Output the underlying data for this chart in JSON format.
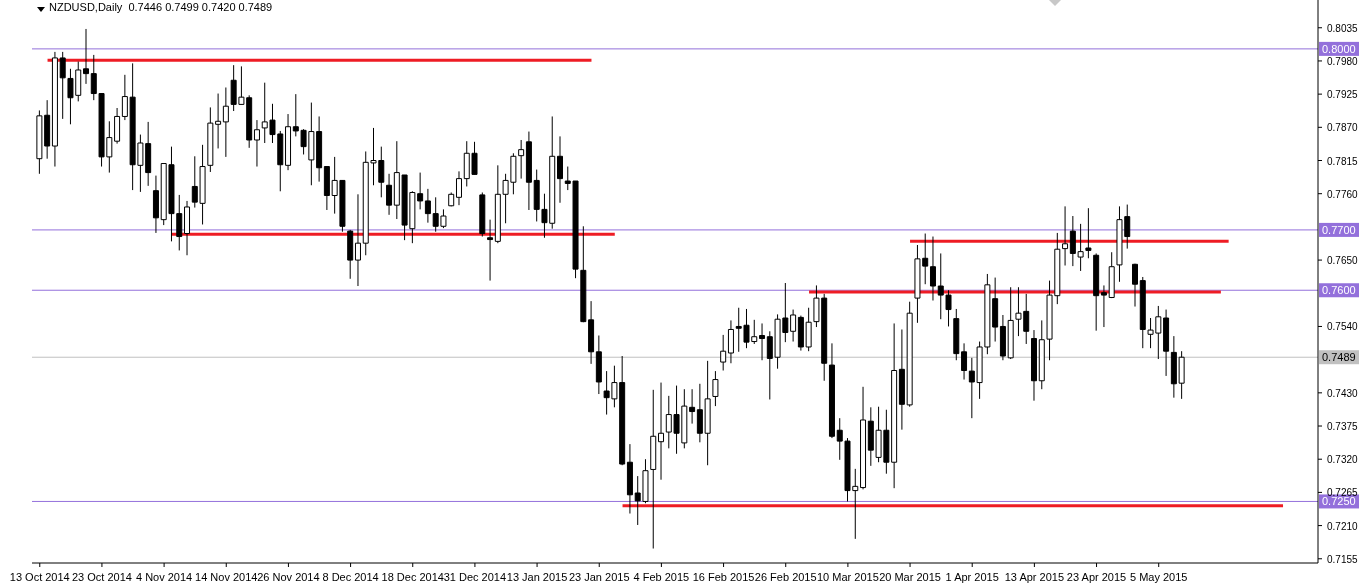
{
  "chart_data": {
    "type": "candlestick",
    "title": "NZDUSD,Daily  0.7446 0.7499 0.7420 0.7489",
    "categories": [
      "13 Oct 2014",
      null,
      null,
      null,
      null,
      null,
      null,
      null,
      "23 Oct 2014",
      null,
      null,
      null,
      null,
      null,
      null,
      null,
      "4 Nov 2014",
      null,
      null,
      null,
      null,
      null,
      null,
      null,
      "14 Nov 2014",
      null,
      null,
      null,
      null,
      null,
      null,
      null,
      "26 Nov 2014",
      null,
      null,
      null,
      null,
      null,
      null,
      null,
      "8 Dec 2014",
      null,
      null,
      null,
      null,
      null,
      null,
      null,
      "18 Dec 2014",
      null,
      null,
      null,
      null,
      null,
      null,
      null,
      "31 Dec 2014",
      null,
      null,
      null,
      null,
      null,
      null,
      null,
      "13 Jan 2015",
      null,
      null,
      null,
      null,
      null,
      null,
      null,
      "23 Jan 2015",
      null,
      null,
      null,
      null,
      null,
      null,
      null,
      "4 Feb 2015",
      null,
      null,
      null,
      null,
      null,
      null,
      null,
      "16 Feb 2015",
      null,
      null,
      null,
      null,
      null,
      null,
      null,
      "26 Feb 2015",
      null,
      null,
      null,
      null,
      null,
      null,
      null,
      "10 Mar 2015",
      null,
      null,
      null,
      null,
      null,
      null,
      null,
      "20 Mar 2015",
      null,
      null,
      null,
      null,
      null,
      null,
      null,
      "1 Apr 2015",
      null,
      null,
      null,
      null,
      null,
      null,
      null,
      "13 Apr 2015",
      null,
      null,
      null,
      null,
      null,
      null,
      null,
      "23 Apr 2015",
      null,
      null,
      null,
      null,
      null,
      null,
      null,
      "5 May 2015",
      null,
      null,
      null,
      null,
      null,
      null,
      null,
      null,
      null,
      null,
      null,
      null,
      null,
      null,
      null,
      null,
      null,
      null,
      null,
      null
    ],
    "ohlc": [
      [
        0.7818,
        0.7898,
        0.7793,
        0.7889
      ],
      [
        0.789,
        0.7915,
        0.7818,
        0.7839
      ],
      [
        0.7839,
        0.7995,
        0.7805,
        0.7985
      ],
      [
        0.7985,
        0.7995,
        0.7884,
        0.7952
      ],
      [
        0.7951,
        0.7967,
        0.7875,
        0.7919
      ],
      [
        0.7923,
        0.7979,
        0.7913,
        0.7965
      ],
      [
        0.7967,
        0.8033,
        0.7942,
        0.7959
      ],
      [
        0.7959,
        0.799,
        0.7915,
        0.7926
      ],
      [
        0.7926,
        0.7926,
        0.7805,
        0.7821
      ],
      [
        0.7821,
        0.788,
        0.7795,
        0.7853
      ],
      [
        0.7847,
        0.7902,
        0.7843,
        0.7888
      ],
      [
        0.7888,
        0.7957,
        0.7882,
        0.7921
      ],
      [
        0.792,
        0.7976,
        0.7766,
        0.7808
      ],
      [
        0.7807,
        0.7858,
        0.7763,
        0.7844
      ],
      [
        0.7843,
        0.7879,
        0.7773,
        0.7795
      ],
      [
        0.7765,
        0.779,
        0.7695,
        0.772
      ],
      [
        0.7717,
        0.781,
        0.7708,
        0.781
      ],
      [
        0.7808,
        0.7838,
        0.7681,
        0.7727
      ],
      [
        0.7727,
        0.7758,
        0.7666,
        0.7689
      ],
      [
        0.7694,
        0.7748,
        0.7658,
        0.7738
      ],
      [
        0.7772,
        0.7822,
        0.7737,
        0.7746
      ],
      [
        0.7744,
        0.7841,
        0.7709,
        0.7805
      ],
      [
        0.7807,
        0.7903,
        0.7796,
        0.7877
      ],
      [
        0.7875,
        0.7926,
        0.7835,
        0.788
      ],
      [
        0.7879,
        0.7936,
        0.7821,
        0.7905
      ],
      [
        0.7948,
        0.7973,
        0.7897,
        0.7908
      ],
      [
        0.7908,
        0.7971,
        0.7908,
        0.792
      ],
      [
        0.7919,
        0.7923,
        0.7836,
        0.7849
      ],
      [
        0.7849,
        0.7882,
        0.7805,
        0.7866
      ],
      [
        0.7869,
        0.7944,
        0.7844,
        0.7879
      ],
      [
        0.7882,
        0.7909,
        0.7844,
        0.7858
      ],
      [
        0.7859,
        0.7864,
        0.7764,
        0.7808
      ],
      [
        0.7807,
        0.7892,
        0.7799,
        0.7871
      ],
      [
        0.7871,
        0.7925,
        0.7855,
        0.7864
      ],
      [
        0.7865,
        0.7867,
        0.7825,
        0.7838
      ],
      [
        0.7816,
        0.7911,
        0.7774,
        0.7863
      ],
      [
        0.7863,
        0.7888,
        0.778,
        0.7803
      ],
      [
        0.7805,
        0.7805,
        0.7733,
        0.7757
      ],
      [
        0.7757,
        0.7821,
        0.7727,
        0.7782
      ],
      [
        0.7782,
        0.7782,
        0.7697,
        0.7706
      ],
      [
        0.7698,
        0.77,
        0.7619,
        0.765
      ],
      [
        0.765,
        0.7759,
        0.7607,
        0.7678
      ],
      [
        0.7678,
        0.783,
        0.7658,
        0.7812
      ],
      [
        0.7811,
        0.7869,
        0.7774,
        0.7815
      ],
      [
        0.7815,
        0.7838,
        0.7754,
        0.7779
      ],
      [
        0.7774,
        0.7793,
        0.7725,
        0.7741
      ],
      [
        0.7741,
        0.7847,
        0.7718,
        0.7795
      ],
      [
        0.7791,
        0.7791,
        0.7683,
        0.7708
      ],
      [
        0.7702,
        0.7764,
        0.7678,
        0.7762
      ],
      [
        0.776,
        0.7795,
        0.7734,
        0.7748
      ],
      [
        0.7748,
        0.7768,
        0.7712,
        0.7727
      ],
      [
        0.7727,
        0.7754,
        0.7697,
        0.7706
      ],
      [
        0.7706,
        0.7734,
        0.7703,
        0.7723
      ],
      [
        0.774,
        0.7762,
        0.7739,
        0.7759
      ],
      [
        0.7754,
        0.7797,
        0.7741,
        0.7785
      ],
      [
        0.7785,
        0.7847,
        0.7772,
        0.7827
      ],
      [
        0.7827,
        0.7846,
        0.7792,
        0.7792
      ],
      [
        0.7758,
        0.7762,
        0.7689,
        0.7694
      ],
      [
        0.7687,
        0.7717,
        0.7616,
        0.7684
      ],
      [
        0.7681,
        0.7807,
        0.7678,
        0.7759
      ],
      [
        0.7759,
        0.7793,
        0.7711,
        0.7782
      ],
      [
        0.7779,
        0.7827,
        0.7759,
        0.7822
      ],
      [
        0.7823,
        0.7849,
        0.7785,
        0.7833
      ],
      [
        0.7846,
        0.7863,
        0.7733,
        0.7779
      ],
      [
        0.7782,
        0.78,
        0.7714,
        0.7734
      ],
      [
        0.7734,
        0.776,
        0.7687,
        0.7712
      ],
      [
        0.7711,
        0.7888,
        0.7702,
        0.7822
      ],
      [
        0.7822,
        0.7855,
        0.7745,
        0.7785
      ],
      [
        0.7781,
        0.7805,
        0.7766,
        0.7777
      ],
      [
        0.7781,
        0.7781,
        0.762,
        0.7635
      ],
      [
        0.7633,
        0.7706,
        0.7547,
        0.7548
      ],
      [
        0.7551,
        0.7582,
        0.7478,
        0.7498
      ],
      [
        0.7498,
        0.7525,
        0.7428,
        0.7448
      ],
      [
        0.7433,
        0.7466,
        0.7394,
        0.7422
      ],
      [
        0.742,
        0.7475,
        0.7406,
        0.7447
      ],
      [
        0.7447,
        0.7491,
        0.731,
        0.7312
      ],
      [
        0.7315,
        0.7345,
        0.723,
        0.7261
      ],
      [
        0.7264,
        0.7292,
        0.7211,
        0.7251
      ],
      [
        0.725,
        0.732,
        0.7247,
        0.7301
      ],
      [
        0.7303,
        0.7435,
        0.7172,
        0.7358
      ],
      [
        0.7349,
        0.7447,
        0.7286,
        0.7363
      ],
      [
        0.7365,
        0.7425,
        0.7338,
        0.7394
      ],
      [
        0.7394,
        0.7442,
        0.7329,
        0.7363
      ],
      [
        0.7347,
        0.7436,
        0.7338,
        0.7408
      ],
      [
        0.7406,
        0.7436,
        0.7379,
        0.7399
      ],
      [
        0.7402,
        0.7445,
        0.7348,
        0.7363
      ],
      [
        0.7363,
        0.7483,
        0.731,
        0.742
      ],
      [
        0.7424,
        0.7466,
        0.7408,
        0.7452
      ],
      [
        0.7481,
        0.7526,
        0.7467,
        0.7499
      ],
      [
        0.7496,
        0.755,
        0.7479,
        0.7535
      ],
      [
        0.754,
        0.7571,
        0.7498,
        0.7537
      ],
      [
        0.7542,
        0.7569,
        0.7504,
        0.7514
      ],
      [
        0.7515,
        0.7551,
        0.7511,
        0.7523
      ],
      [
        0.7525,
        0.7545,
        0.7484,
        0.752
      ],
      [
        0.7523,
        0.7532,
        0.7419,
        0.7487
      ],
      [
        0.7489,
        0.756,
        0.747,
        0.7552
      ],
      [
        0.7554,
        0.7612,
        0.7514,
        0.753
      ],
      [
        0.7532,
        0.7568,
        0.7515,
        0.7559
      ],
      [
        0.7555,
        0.7558,
        0.75,
        0.7506
      ],
      [
        0.7506,
        0.7571,
        0.7499,
        0.7547
      ],
      [
        0.7548,
        0.7608,
        0.7539,
        0.7587
      ],
      [
        0.7587,
        0.7594,
        0.745,
        0.7479
      ],
      [
        0.7476,
        0.7512,
        0.7355,
        0.7358
      ],
      [
        0.7368,
        0.7388,
        0.7319,
        0.735
      ],
      [
        0.735,
        0.7355,
        0.725,
        0.7268
      ],
      [
        0.7268,
        0.7304,
        0.7188,
        0.7275
      ],
      [
        0.7273,
        0.744,
        0.727,
        0.7385
      ],
      [
        0.7383,
        0.7406,
        0.7309,
        0.7335
      ],
      [
        0.7323,
        0.7407,
        0.7315,
        0.7368
      ],
      [
        0.7368,
        0.7402,
        0.7296,
        0.7315
      ],
      [
        0.7315,
        0.7545,
        0.7272,
        0.7467
      ],
      [
        0.7469,
        0.7535,
        0.7369,
        0.7411
      ],
      [
        0.741,
        0.7581,
        0.7407,
        0.7562
      ],
      [
        0.7587,
        0.7675,
        0.7546,
        0.7652
      ],
      [
        0.7653,
        0.7694,
        0.761,
        0.764
      ],
      [
        0.7639,
        0.7689,
        0.7583,
        0.7607
      ],
      [
        0.7607,
        0.7661,
        0.7552,
        0.7592
      ],
      [
        0.7592,
        0.76,
        0.754,
        0.7568
      ],
      [
        0.7553,
        0.7569,
        0.7484,
        0.7495
      ],
      [
        0.7498,
        0.7512,
        0.7452,
        0.7467
      ],
      [
        0.7466,
        0.7488,
        0.7388,
        0.7448
      ],
      [
        0.7447,
        0.7515,
        0.742,
        0.7506
      ],
      [
        0.7506,
        0.7627,
        0.7494,
        0.7609
      ],
      [
        0.7586,
        0.7621,
        0.7515,
        0.7539
      ],
      [
        0.754,
        0.7559,
        0.7484,
        0.7491
      ],
      [
        0.7488,
        0.7605,
        0.7486,
        0.755
      ],
      [
        0.7552,
        0.7605,
        0.7524,
        0.7562
      ],
      [
        0.7565,
        0.7594,
        0.7511,
        0.7532
      ],
      [
        0.752,
        0.7534,
        0.7417,
        0.745
      ],
      [
        0.745,
        0.755,
        0.7436,
        0.7518
      ],
      [
        0.7519,
        0.7616,
        0.7484,
        0.7592
      ],
      [
        0.7591,
        0.7695,
        0.7577,
        0.7668
      ],
      [
        0.7669,
        0.7739,
        0.7641,
        0.7677
      ],
      [
        0.7698,
        0.7723,
        0.764,
        0.7661
      ],
      [
        0.7655,
        0.771,
        0.7632,
        0.7664
      ],
      [
        0.767,
        0.7736,
        0.7653,
        0.7666
      ],
      [
        0.7658,
        0.7661,
        0.7533,
        0.7591
      ],
      [
        0.7596,
        0.7608,
        0.7539,
        0.7592
      ],
      [
        0.7588,
        0.7663,
        0.7587,
        0.7639
      ],
      [
        0.7642,
        0.7739,
        0.7614,
        0.7717
      ],
      [
        0.7722,
        0.7742,
        0.7669,
        0.7689
      ],
      [
        0.7643,
        0.7644,
        0.7573,
        0.761
      ],
      [
        0.7616,
        0.7622,
        0.7504,
        0.7535
      ],
      [
        0.7527,
        0.7554,
        0.7504,
        0.7534
      ],
      [
        0.7529,
        0.7574,
        0.7486,
        0.7556
      ],
      [
        0.7554,
        0.7568,
        0.7458,
        0.7499
      ],
      [
        0.7497,
        0.7524,
        0.7422,
        0.7445
      ],
      [
        0.7446,
        0.7499,
        0.742,
        0.7489
      ],
      null,
      null,
      null,
      null,
      null,
      null,
      null,
      null,
      null,
      null,
      null,
      null,
      null,
      null,
      null,
      null,
      null
    ],
    "series": [
      {
        "type": "line",
        "color": "#ee1c24",
        "values": [
          null,
          0.7981,
          null,
          null,
          null,
          null,
          null,
          null,
          null,
          null,
          null,
          null,
          null,
          null,
          null,
          null,
          null,
          null,
          null,
          null,
          null,
          null,
          null,
          null,
          null,
          null,
          null,
          null,
          null,
          null,
          null,
          null,
          null,
          null,
          null,
          null,
          null,
          null,
          null,
          null,
          null,
          null,
          null,
          null,
          null,
          null,
          null,
          null,
          null,
          null,
          null,
          null,
          null,
          null,
          null,
          null,
          null,
          null,
          null,
          null,
          null,
          null,
          null,
          null,
          null,
          null,
          null,
          null,
          null,
          null,
          null,
          0.7981,
          null,
          null,
          null,
          null,
          null,
          null,
          null,
          null,
          null,
          null,
          null,
          null,
          null,
          null,
          null,
          null,
          null,
          null,
          null,
          null,
          null,
          null,
          null,
          null,
          null,
          null,
          null,
          null,
          null,
          null,
          null,
          null,
          null,
          null,
          null,
          null,
          null,
          null,
          null,
          null,
          null,
          null,
          null,
          null,
          null,
          null,
          null,
          null,
          null,
          null,
          null,
          null,
          null,
          null,
          null,
          null,
          null,
          null,
          null,
          null,
          null,
          null,
          null,
          null,
          null,
          null,
          null,
          null,
          null,
          null,
          null,
          null,
          null,
          null,
          null,
          null,
          null,
          null,
          null,
          null,
          null,
          null,
          null,
          null,
          null,
          null,
          null,
          null,
          null,
          null,
          null,
          null,
          null
        ]
      },
      {
        "type": "line",
        "color": "#ee1c24",
        "values": [
          null,
          null,
          null,
          null,
          null,
          null,
          null,
          null,
          null,
          null,
          null,
          null,
          null,
          null,
          null,
          null,
          null,
          0.7693,
          null,
          null,
          null,
          null,
          null,
          null,
          null,
          null,
          null,
          null,
          null,
          null,
          null,
          null,
          null,
          null,
          null,
          null,
          null,
          null,
          null,
          null,
          null,
          null,
          null,
          null,
          null,
          null,
          null,
          null,
          null,
          null,
          null,
          null,
          null,
          null,
          null,
          null,
          null,
          null,
          null,
          null,
          null,
          null,
          null,
          null,
          null,
          null,
          null,
          null,
          null,
          null,
          null,
          null,
          null,
          null,
          0.7693,
          null,
          null,
          null,
          null,
          null,
          null,
          null,
          null,
          null,
          null,
          null,
          null,
          null,
          null,
          null,
          null,
          null,
          null,
          null,
          null,
          null,
          null,
          null,
          null,
          null,
          null,
          null,
          null,
          null,
          null,
          null,
          null,
          null,
          null,
          null,
          null,
          null,
          null,
          null,
          null,
          null,
          null,
          null,
          null,
          null,
          null,
          null,
          null,
          null,
          null,
          null,
          null,
          null,
          null,
          null,
          null,
          null,
          null,
          null,
          null,
          null,
          null,
          null,
          null,
          null,
          null,
          null,
          null,
          null,
          null,
          null,
          null,
          null,
          null,
          null,
          null,
          null,
          null,
          null,
          null,
          null,
          null,
          null,
          null,
          null,
          null,
          null,
          null,
          null,
          null
        ]
      },
      {
        "type": "line",
        "color": "#ee1c24",
        "values": [
          null,
          null,
          null,
          null,
          null,
          null,
          null,
          null,
          null,
          null,
          null,
          null,
          null,
          null,
          null,
          null,
          null,
          null,
          null,
          null,
          null,
          null,
          null,
          null,
          null,
          null,
          null,
          null,
          null,
          null,
          null,
          null,
          null,
          null,
          null,
          null,
          null,
          null,
          null,
          null,
          null,
          null,
          null,
          null,
          null,
          null,
          null,
          null,
          null,
          null,
          null,
          null,
          null,
          null,
          null,
          null,
          null,
          null,
          null,
          null,
          null,
          null,
          null,
          null,
          null,
          null,
          null,
          null,
          null,
          null,
          null,
          null,
          null,
          null,
          null,
          0.7243,
          null,
          null,
          null,
          null,
          null,
          null,
          null,
          null,
          null,
          null,
          null,
          null,
          null,
          null,
          null,
          null,
          null,
          null,
          null,
          null,
          null,
          null,
          null,
          null,
          null,
          null,
          null,
          null,
          null,
          null,
          null,
          null,
          null,
          null,
          null,
          null,
          null,
          null,
          null,
          null,
          null,
          null,
          null,
          null,
          null,
          null,
          null,
          null,
          null,
          null,
          null,
          null,
          null,
          null,
          null,
          null,
          null,
          null,
          null,
          null,
          null,
          null,
          null,
          null,
          null,
          null,
          null,
          null,
          null,
          null,
          null,
          null,
          null,
          null,
          null,
          null,
          null,
          null,
          null,
          null,
          null,
          null,
          null,
          null,
          0.7243,
          null,
          null,
          null,
          null
        ]
      },
      {
        "type": "line",
        "color": "#ee1c24",
        "values": [
          null,
          null,
          null,
          null,
          null,
          null,
          null,
          null,
          null,
          null,
          null,
          null,
          null,
          null,
          null,
          null,
          null,
          null,
          null,
          null,
          null,
          null,
          null,
          null,
          null,
          null,
          null,
          null,
          null,
          null,
          null,
          null,
          null,
          null,
          null,
          null,
          null,
          null,
          null,
          null,
          null,
          null,
          null,
          null,
          null,
          null,
          null,
          null,
          null,
          null,
          null,
          null,
          null,
          null,
          null,
          null,
          null,
          null,
          null,
          null,
          null,
          null,
          null,
          null,
          null,
          null,
          null,
          null,
          null,
          null,
          null,
          null,
          null,
          null,
          null,
          null,
          null,
          null,
          null,
          null,
          null,
          null,
          null,
          null,
          null,
          null,
          null,
          null,
          null,
          null,
          null,
          null,
          null,
          null,
          null,
          null,
          null,
          null,
          null,
          0.7597,
          null,
          null,
          null,
          null,
          null,
          null,
          null,
          null,
          null,
          null,
          null,
          null,
          null,
          null,
          null,
          null,
          null,
          null,
          null,
          null,
          null,
          null,
          null,
          null,
          null,
          null,
          null,
          null,
          null,
          null,
          null,
          null,
          null,
          null,
          null,
          null,
          null,
          null,
          null,
          null,
          null,
          null,
          null,
          null,
          null,
          null,
          null,
          null,
          null,
          null,
          null,
          null,
          0.7597,
          null,
          null,
          null,
          null,
          null,
          null,
          null,
          null,
          null,
          null,
          null,
          null
        ]
      },
      {
        "type": "line",
        "color": "#ee1c24",
        "values": [
          null,
          null,
          null,
          null,
          null,
          null,
          null,
          null,
          null,
          null,
          null,
          null,
          null,
          null,
          null,
          null,
          null,
          null,
          null,
          null,
          null,
          null,
          null,
          null,
          null,
          null,
          null,
          null,
          null,
          null,
          null,
          null,
          null,
          null,
          null,
          null,
          null,
          null,
          null,
          null,
          null,
          null,
          null,
          null,
          null,
          null,
          null,
          null,
          null,
          null,
          null,
          null,
          null,
          null,
          null,
          null,
          null,
          null,
          null,
          null,
          null,
          null,
          null,
          null,
          null,
          null,
          null,
          null,
          null,
          null,
          null,
          null,
          null,
          null,
          null,
          null,
          null,
          null,
          null,
          null,
          null,
          null,
          null,
          null,
          null,
          null,
          null,
          null,
          null,
          null,
          null,
          null,
          null,
          null,
          null,
          null,
          null,
          null,
          null,
          null,
          null,
          null,
          null,
          null,
          null,
          null,
          null,
          null,
          null,
          null,
          null,
          null,
          0.7681,
          null,
          null,
          null,
          null,
          null,
          null,
          null,
          null,
          null,
          null,
          null,
          null,
          null,
          null,
          null,
          null,
          null,
          null,
          null,
          null,
          null,
          null,
          null,
          null,
          null,
          null,
          null,
          null,
          null,
          null,
          null,
          null,
          null,
          null,
          null,
          null,
          null,
          null,
          null,
          null,
          0.7681,
          null,
          null,
          null,
          null,
          null,
          null,
          null,
          null,
          null,
          null,
          null
        ]
      }
    ],
    "ref_lines": [
      {
        "axis": "y",
        "value": 0.8,
        "label": "0.8000",
        "color": "#9370db"
      },
      {
        "axis": "y",
        "value": 0.77,
        "label": "0.7700",
        "color": "#9370db"
      },
      {
        "axis": "y",
        "value": 0.76,
        "label": "0.7600",
        "color": "#9370db"
      },
      {
        "axis": "y",
        "value": 0.725,
        "label": "0.7250",
        "color": "#9370db"
      },
      {
        "axis": "y",
        "value": 0.7489,
        "label": "0.7489",
        "color": "#c0c0c0"
      }
    ],
    "ylim": [
      0.7148,
      0.8081
    ],
    "yticks": [
      {
        "value": 0.8035,
        "label": "0.8035"
      },
      {
        "value": 0.798,
        "label": "0.7980"
      },
      {
        "value": 0.7925,
        "label": "0.7925"
      },
      {
        "value": 0.787,
        "label": "0.7870"
      },
      {
        "value": 0.7815,
        "label": "0.7815"
      },
      {
        "value": 0.776,
        "label": "0.7760"
      },
      {
        "value": 0.765,
        "label": "0.7650"
      },
      {
        "value": 0.754,
        "label": "0.7540"
      },
      {
        "value": 0.743,
        "label": "0.7430"
      },
      {
        "value": 0.7375,
        "label": "0.7375"
      },
      {
        "value": 0.732,
        "label": "0.7320"
      },
      {
        "value": 0.7265,
        "label": "0.7265"
      },
      {
        "value": 0.721,
        "label": "0.7210"
      },
      {
        "value": 0.7155,
        "label": "0.7155"
      }
    ]
  }
}
